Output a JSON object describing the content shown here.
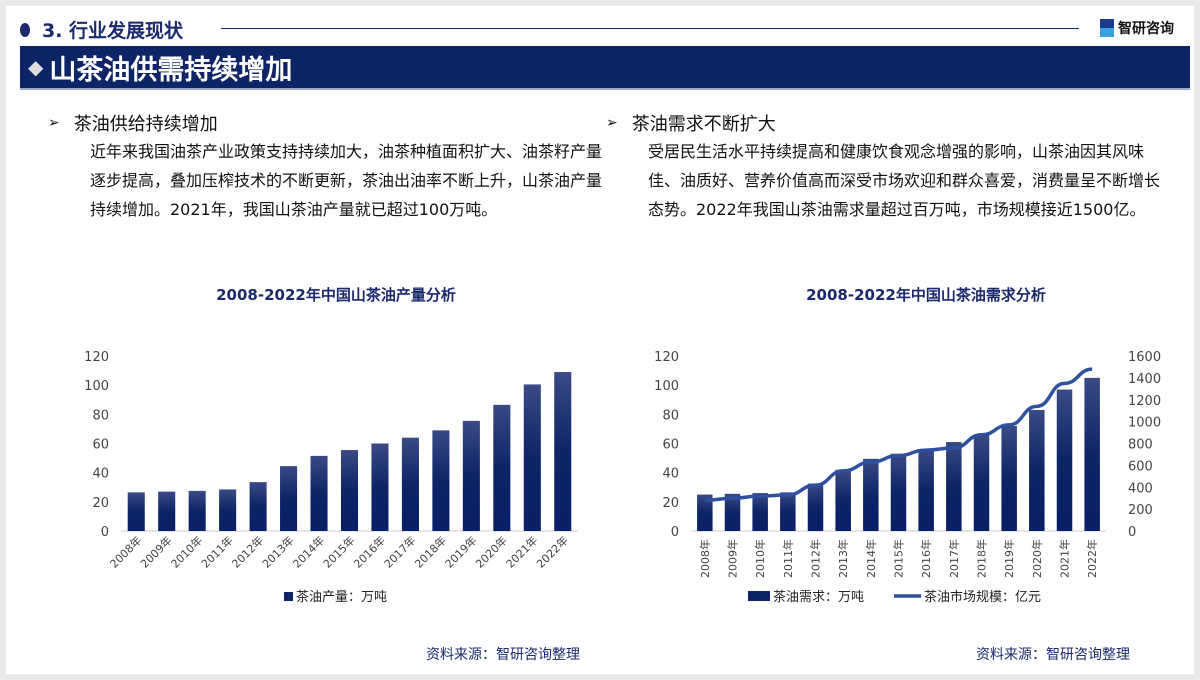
{
  "header": {
    "section": "3. 行业发展现状",
    "logo": "智研咨询",
    "banner": "山茶油供需持续增加"
  },
  "left": {
    "heading": "茶油供给持续增加",
    "text": "近年来我国油茶产业政策支持持续加大，油茶种植面积扩大、油茶籽产量逐步提高，叠加压榨技术的不断更新，茶油出油率不断上升，山茶油产量持续增加。2021年，我国山茶油产量就已超过100万吨。",
    "source": "资料来源：智研咨询整理"
  },
  "right": {
    "heading": "茶油需求不断扩大",
    "text": "受居民生活水平持续提高和健康饮食观念增强的影响，山茶油因其风味佳、油质好、营养价值高而深受市场欢迎和群众喜爱，消费量呈不断增长态势。2022年我国山茶油需求量超过百万吨，市场规模接近1500亿。",
    "source": "资料来源：智研咨询整理"
  },
  "colors": {
    "bar": "#0d2466",
    "line": "#2f4f9f"
  },
  "chart_data": [
    {
      "type": "bar",
      "title": "2008-2022年中国山茶油产量分析",
      "categories": [
        "2008年",
        "2009年",
        "2010年",
        "2011年",
        "2012年",
        "2013年",
        "2014年",
        "2015年",
        "2016年",
        "2017年",
        "2018年",
        "2019年",
        "2020年",
        "2021年",
        "2022年"
      ],
      "series": [
        {
          "name": "茶油产量：万吨",
          "values": [
            26.5,
            27,
            27.5,
            28.5,
            33.5,
            44.5,
            51.5,
            55.5,
            60,
            64,
            69,
            75.5,
            86.5,
            100.5,
            109
          ]
        }
      ],
      "ylim": [
        0,
        120
      ],
      "yticks": [
        0,
        20,
        40,
        60,
        80,
        100,
        120
      ],
      "legend": "bottom"
    },
    {
      "type": "bar+line",
      "title": "2008-2022年中国山茶油需求分析",
      "categories": [
        "2008年",
        "2009年",
        "2010年",
        "2011年",
        "2012年",
        "2013年",
        "2014年",
        "2015年",
        "2016年",
        "2017年",
        "2018年",
        "2019年",
        "2020年",
        "2021年",
        "2022年"
      ],
      "series": [
        {
          "name": "茶油需求：万吨",
          "type": "bar",
          "axis": "left",
          "values": [
            25,
            25.5,
            26,
            26.5,
            32.5,
            42,
            49.5,
            53,
            56,
            61,
            66,
            72,
            83,
            97,
            105
          ]
        },
        {
          "name": "茶油市场规模：亿元",
          "type": "line",
          "axis": "right",
          "values": [
            280,
            300,
            320,
            330,
            420,
            550,
            630,
            690,
            740,
            760,
            880,
            970,
            1140,
            1350,
            1480
          ]
        }
      ],
      "ylim": [
        0,
        120
      ],
      "yticks": [
        0,
        20,
        40,
        60,
        80,
        100,
        120
      ],
      "y2lim": [
        0,
        1600
      ],
      "y2ticks": [
        0,
        200,
        400,
        600,
        800,
        1000,
        1200,
        1400,
        1600
      ],
      "legend": "bottom"
    }
  ]
}
